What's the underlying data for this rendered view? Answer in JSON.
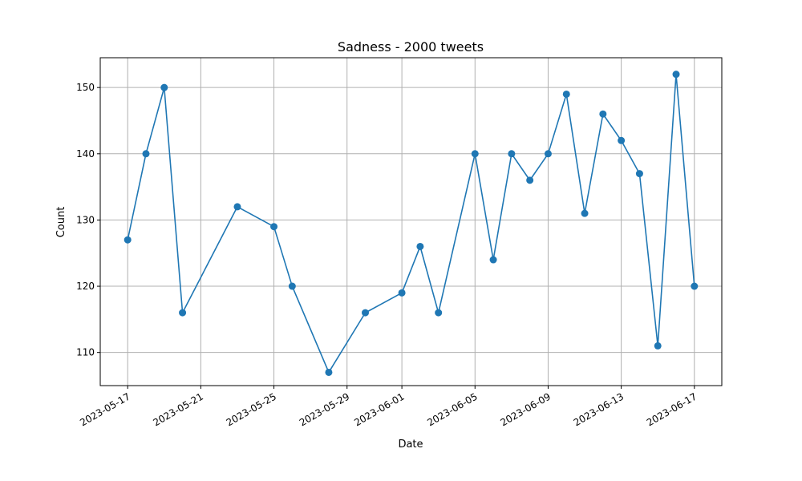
{
  "chart_data": {
    "type": "line",
    "title": "Sadness - 2000 tweets",
    "xlabel": "Date",
    "ylabel": "Count",
    "x_ticks": [
      "2023-05-17",
      "2023-05-21",
      "2023-05-25",
      "2023-05-29",
      "2023-06-01",
      "2023-06-05",
      "2023-06-09",
      "2023-06-13",
      "2023-06-17"
    ],
    "y_ticks": [
      110,
      120,
      130,
      140,
      150
    ],
    "xlim": [
      "2023-05-15T12:00",
      "2023-06-18T12:00"
    ],
    "ylim": [
      105,
      154.5
    ],
    "grid": true,
    "series": [
      {
        "color": "#1f77b4",
        "x": [
          "2023-05-17",
          "2023-05-18",
          "2023-05-19",
          "2023-05-20",
          "2023-05-23",
          "2023-05-25",
          "2023-05-26",
          "2023-05-28",
          "2023-05-30",
          "2023-06-01",
          "2023-06-02",
          "2023-06-03",
          "2023-06-05",
          "2023-06-06",
          "2023-06-07",
          "2023-06-08",
          "2023-06-09",
          "2023-06-10",
          "2023-06-11",
          "2023-06-12",
          "2023-06-13",
          "2023-06-14",
          "2023-06-15",
          "2023-06-16",
          "2023-06-17"
        ],
        "y": [
          127,
          140,
          150,
          116,
          132,
          129,
          120,
          107,
          116,
          119,
          126,
          116,
          140,
          124,
          140,
          136,
          140,
          149,
          131,
          146,
          142,
          137,
          111,
          152,
          120
        ]
      }
    ]
  }
}
